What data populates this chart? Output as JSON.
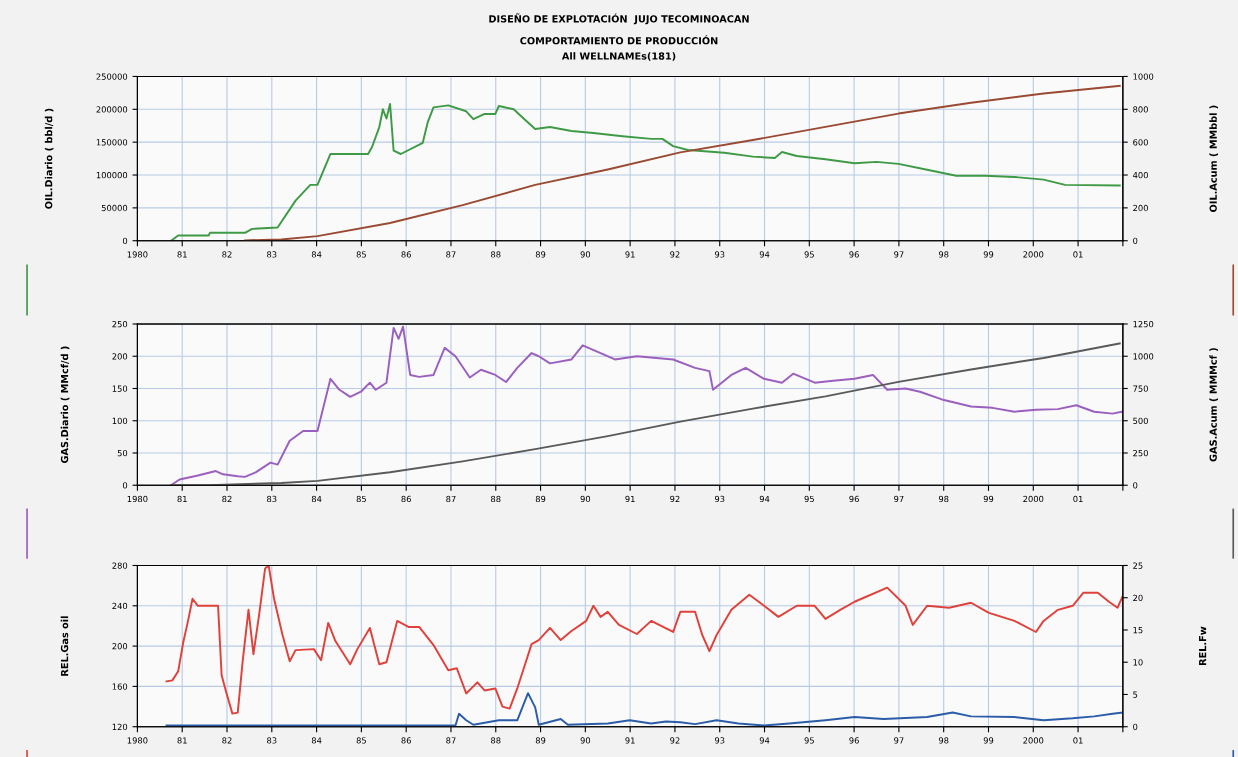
{
  "chart_data": [
    {
      "type": "line",
      "title": "DISEÑO DE EXPLOTACIÓN  JUJO TECOMINOACAN",
      "subtitle": "COMPORTAMIENTO DE PRODUCCIÓN\nAll WELLNAMEs(181)",
      "ylabel": "OIL.Diario ( bbl/d )",
      "y2label": "OIL.Acum ( MMbbl )",
      "grid": true,
      "xlim": [
        1980,
        2002
      ],
      "ylim": [
        0,
        250000
      ],
      "yticks": [
        0,
        50000,
        100000,
        150000,
        200000,
        250000
      ],
      "y2lim": [
        0,
        1000
      ],
      "y2ticks": [
        0,
        200,
        400,
        600,
        800,
        1000
      ],
      "xticks": [
        1980,
        {
          "value": 1981,
          "label": "81"
        },
        {
          "value": 1982,
          "label": "82"
        },
        {
          "value": 1983,
          "label": "83"
        },
        {
          "value": 1984,
          "label": "84"
        },
        {
          "value": 1985,
          "label": "85"
        },
        {
          "value": 1986,
          "label": "86"
        },
        {
          "value": 1987,
          "label": "87"
        },
        {
          "value": 1988,
          "label": "88"
        },
        {
          "value": 1989,
          "label": "89"
        },
        {
          "value": 1990,
          "label": "90"
        },
        {
          "value": 1991,
          "label": "91"
        },
        {
          "value": 1992,
          "label": "92"
        },
        {
          "value": 1993,
          "label": "93"
        },
        {
          "value": 1994,
          "label": "94"
        },
        {
          "value": 1995,
          "label": "95"
        },
        {
          "value": 1996,
          "label": "96"
        },
        {
          "value": 1997,
          "label": "97"
        },
        {
          "value": 1998,
          "label": "98"
        },
        {
          "value": 1999,
          "label": "99"
        },
        2000,
        {
          "value": 2001,
          "label": "01"
        },
        {
          "value": 2002,
          "label": null
        }
      ],
      "series": [
        {
          "color": "#3f9a45",
          "axis": "y",
          "x": [
            1980.75,
            1980.91,
            1981.59,
            1981.62,
            1982.4,
            1982.56,
            1983.13,
            1983.53,
            1983.86,
            1984.02,
            1984.31,
            1985.15,
            1985.24,
            1985.4,
            1985.48,
            1985.56,
            1985.64,
            1985.72,
            1985.88,
            1986.37,
            1986.48,
            1986.61,
            1986.94,
            1987.34,
            1987.5,
            1987.75,
            1987.99,
            1988.07,
            1988.4,
            1988.64,
            1988.88,
            1989.21,
            1989.69,
            1990.18,
            1990.83,
            1991.47,
            1991.72,
            1991.96,
            1992.29,
            1993.1,
            1993.74,
            1994.23,
            1994.39,
            1994.72,
            1995.36,
            1996.01,
            1996.5,
            1996.99,
            1997.63,
            1998.28,
            1998.93,
            1999.58,
            2000.23,
            2000.71,
            2001.93
          ],
          "values": [
            0,
            8000,
            8000,
            12000,
            12000,
            18000,
            20000,
            61000,
            85000,
            85000,
            132000,
            132000,
            143000,
            173000,
            200000,
            186000,
            208000,
            137000,
            132000,
            149000,
            180000,
            203000,
            206000,
            197000,
            185000,
            193000,
            193000,
            205000,
            200000,
            185000,
            170000,
            173000,
            167000,
            164000,
            159000,
            155000,
            155000,
            144000,
            138000,
            134000,
            128000,
            126000,
            135000,
            129000,
            124000,
            118000,
            120000,
            117000,
            108000,
            99000,
            99000,
            97000,
            93000,
            85000,
            84000
          ]
        },
        {
          "color": "#9a4a32",
          "axis": "y2",
          "x": [
            1982.4,
            1983.21,
            1984.02,
            1985.64,
            1987.26,
            1988.88,
            1990.5,
            1992.12,
            1993.74,
            1995.36,
            1996.99,
            1998.61,
            2000.23,
            2001.93
          ],
          "values": [
            2,
            8,
            28,
            108,
            217,
            340,
            434,
            538,
            613,
            693,
            774,
            840,
            896,
            943
          ]
        }
      ]
    },
    {
      "type": "line",
      "ylabel": "GAS.Diario ( MMcf/d )",
      "y2label": "GAS.Acum ( MMMcf )",
      "grid": true,
      "xlim": [
        1980,
        2002
      ],
      "ylim": [
        0,
        250
      ],
      "yticks": [
        0,
        50,
        100,
        150,
        200,
        250
      ],
      "y2lim": [
        0,
        1250
      ],
      "y2ticks": [
        0,
        250,
        500,
        750,
        1000,
        1250
      ],
      "xticks": [
        1980,
        {
          "value": 1981,
          "label": "81"
        },
        {
          "value": 1982,
          "label": "82"
        },
        {
          "value": 1983,
          "label": "83"
        },
        {
          "value": 1984,
          "label": "84"
        },
        {
          "value": 1985,
          "label": "85"
        },
        {
          "value": 1986,
          "label": "86"
        },
        {
          "value": 1987,
          "label": "87"
        },
        {
          "value": 1988,
          "label": "88"
        },
        {
          "value": 1989,
          "label": "89"
        },
        {
          "value": 1990,
          "label": "90"
        },
        {
          "value": 1991,
          "label": "91"
        },
        {
          "value": 1992,
          "label": "92"
        },
        {
          "value": 1993,
          "label": "93"
        },
        {
          "value": 1994,
          "label": "94"
        },
        {
          "value": 1995,
          "label": "95"
        },
        {
          "value": 1996,
          "label": "96"
        },
        {
          "value": 1997,
          "label": "97"
        },
        {
          "value": 1998,
          "label": "98"
        },
        {
          "value": 1999,
          "label": "99"
        },
        2000,
        {
          "value": 2001,
          "label": "01"
        },
        {
          "value": 2002,
          "label": null
        }
      ],
      "series": [
        {
          "color": "#9a5fbf",
          "axis": "y",
          "x": [
            1980.75,
            1980.94,
            1981.35,
            1981.75,
            1981.91,
            1982.24,
            1982.4,
            1982.64,
            1982.97,
            1983.13,
            1983.4,
            1983.7,
            1984.02,
            1984.31,
            1984.51,
            1984.75,
            1984.99,
            1985.19,
            1985.32,
            1985.56,
            1985.72,
            1985.83,
            1985.93,
            1986.09,
            1986.29,
            1986.61,
            1986.86,
            1987.1,
            1987.42,
            1987.67,
            1987.99,
            1988.23,
            1988.48,
            1988.8,
            1988.96,
            1989.21,
            1989.69,
            1989.94,
            1990.34,
            1990.66,
            1991.15,
            1991.96,
            1992.45,
            1992.77,
            1992.85,
            1993.26,
            1993.58,
            1993.99,
            1994.39,
            1994.64,
            1995.12,
            1995.53,
            1996.01,
            1996.42,
            1996.74,
            1997.15,
            1997.47,
            1997.96,
            1998.61,
            1999.09,
            1999.58,
            2000.06,
            2000.55,
            2000.96,
            2001.36,
            2001.77,
            2001.98
          ],
          "values": [
            0,
            9,
            15,
            22,
            17,
            14,
            13,
            20,
            35,
            32,
            69,
            84,
            84,
            165,
            148,
            137,
            145,
            159,
            148,
            159,
            244,
            227,
            246,
            171,
            168,
            171,
            213,
            200,
            167,
            179,
            171,
            160,
            182,
            205,
            200,
            189,
            195,
            217,
            205,
            195,
            200,
            195,
            182,
            177,
            148,
            171,
            182,
            165,
            159,
            173,
            159,
            162,
            165,
            171,
            148,
            150,
            145,
            133,
            122,
            120,
            114,
            117,
            118,
            124,
            114,
            111,
            114
          ]
        },
        {
          "color": "#5a5a5a",
          "axis": "y2",
          "x": [
            1980.75,
            1981.59,
            1983.21,
            1984.02,
            1985.64,
            1987.26,
            1988.88,
            1990.5,
            1992.12,
            1993.74,
            1995.36,
            1996.99,
            1998.61,
            2000.23,
            2001.93
          ],
          "values": [
            0,
            1,
            17,
            34,
            101,
            185,
            280,
            381,
            493,
            594,
            689,
            801,
            897,
            987,
            1099
          ]
        }
      ]
    },
    {
      "type": "line",
      "ylabel": "REL.Gas oil",
      "y2label": "REL.Fw",
      "grid": true,
      "xlim": [
        1980,
        2002
      ],
      "ylim": [
        120,
        280
      ],
      "yticks": [
        120,
        160,
        200,
        240,
        280
      ],
      "y2lim": [
        0,
        25
      ],
      "y2ticks": [
        0,
        5,
        10,
        15,
        20,
        25
      ],
      "xticks": [
        1980,
        {
          "value": 1981,
          "label": "81"
        },
        {
          "value": 1982,
          "label": "82"
        },
        {
          "value": 1983,
          "label": "83"
        },
        {
          "value": 1984,
          "label": "84"
        },
        {
          "value": 1985,
          "label": "85"
        },
        {
          "value": 1986,
          "label": "86"
        },
        {
          "value": 1987,
          "label": "87"
        },
        {
          "value": 1988,
          "label": "88"
        },
        {
          "value": 1989,
          "label": "89"
        },
        {
          "value": 1990,
          "label": "90"
        },
        {
          "value": 1991,
          "label": "91"
        },
        {
          "value": 1992,
          "label": "92"
        },
        {
          "value": 1993,
          "label": "93"
        },
        {
          "value": 1994,
          "label": "94"
        },
        {
          "value": 1995,
          "label": "95"
        },
        {
          "value": 1996,
          "label": "96"
        },
        {
          "value": 1997,
          "label": "97"
        },
        {
          "value": 1998,
          "label": "98"
        },
        {
          "value": 1999,
          "label": "99"
        },
        2000,
        {
          "value": 2001,
          "label": "01"
        },
        {
          "value": 2002,
          "label": null
        }
      ],
      "series": [
        {
          "color": "#e0413a",
          "axis": "y",
          "x": [
            1980.65,
            1980.78,
            1980.91,
            1981.02,
            1981.13,
            1981.23,
            1981.35,
            1981.75,
            1981.8,
            1981.88,
            1981.99,
            1982.12,
            1982.24,
            1982.35,
            1982.48,
            1982.59,
            1982.72,
            1982.85,
            1982.93,
            1983.05,
            1983.24,
            1983.4,
            1983.53,
            1983.94,
            1984.1,
            1984.26,
            1984.42,
            1984.75,
            1984.91,
            1985.19,
            1985.4,
            1985.56,
            1985.8,
            1986.05,
            1986.29,
            1986.61,
            1986.77,
            1986.94,
            1987.13,
            1987.34,
            1987.59,
            1987.75,
            1987.99,
            1988.15,
            1988.31,
            1988.48,
            1988.64,
            1988.8,
            1988.96,
            1989.21,
            1989.45,
            1989.69,
            1990.02,
            1990.18,
            1990.34,
            1990.5,
            1990.75,
            1991.15,
            1991.47,
            1991.96,
            1992.12,
            1992.45,
            1992.61,
            1992.77,
            1992.93,
            1993.26,
            1993.66,
            1993.99,
            1994.31,
            1994.72,
            1995.12,
            1995.36,
            1995.69,
            1996.01,
            1996.74,
            1997.15,
            1997.31,
            1997.63,
            1998.12,
            1998.61,
            1999.01,
            1999.58,
            2000.06,
            2000.23,
            2000.55,
            2000.88,
            2001.12,
            2001.44,
            2001.69,
            2001.88,
            2001.99
          ],
          "values": [
            165,
            166,
            175,
            203,
            225,
            247,
            240,
            240,
            240,
            171,
            153,
            133,
            134,
            185,
            236,
            192,
            232,
            277,
            280,
            247,
            211,
            185,
            196,
            197,
            186,
            223,
            205,
            182,
            197,
            218,
            182,
            184,
            225,
            219,
            219,
            201,
            189,
            176,
            178,
            153,
            164,
            156,
            158,
            140,
            138,
            158,
            180,
            202,
            206,
            218,
            206,
            215,
            225,
            240,
            229,
            234,
            221,
            212,
            225,
            214,
            234,
            234,
            211,
            195,
            211,
            236,
            251,
            240,
            229,
            240,
            240,
            227,
            236,
            244,
            258,
            240,
            221,
            240,
            238,
            243,
            233,
            225,
            214,
            225,
            236,
            240,
            253,
            253,
            244,
            238,
            249
          ]
        },
        {
          "color": "#2b5ca8",
          "axis": "y2",
          "x": [
            1980.65,
            1987.1,
            1987.18,
            1987.34,
            1987.5,
            1988.07,
            1988.48,
            1988.72,
            1988.88,
            1988.96,
            1989.45,
            1989.61,
            1990.5,
            1990.99,
            1991.47,
            1991.8,
            1992.12,
            1992.45,
            1992.93,
            1993.42,
            1993.99,
            1994.55,
            1995.36,
            1996.01,
            1996.66,
            1997.63,
            1998.2,
            1998.61,
            1999.58,
            2000.23,
            2000.88,
            2001.36,
            2001.77,
            2001.99
          ],
          "values": [
            0.2,
            0.2,
            2.0,
            1.0,
            0.3,
            1.0,
            1.0,
            5.2,
            3.0,
            0.3,
            1.2,
            0.3,
            0.5,
            1.0,
            0.5,
            0.8,
            0.7,
            0.4,
            1.0,
            0.5,
            0.2,
            0.5,
            1.0,
            1.5,
            1.2,
            1.5,
            2.2,
            1.6,
            1.5,
            1.0,
            1.3,
            1.6,
            2.0,
            2.2
          ]
        }
      ]
    }
  ]
}
